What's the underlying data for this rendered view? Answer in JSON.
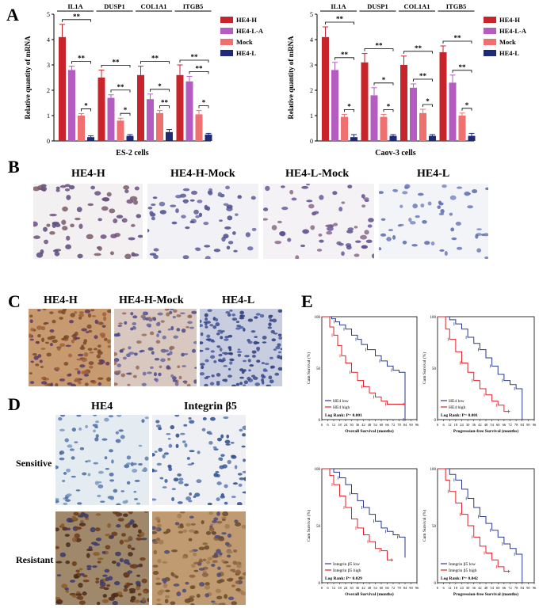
{
  "panels": {
    "a": "A",
    "b": "B",
    "c": "C",
    "d": "D",
    "e": "E"
  },
  "colors": {
    "HE4-H": "#c8242c",
    "HE4-L-A": "#b45cc0",
    "Mock": "#f07070",
    "HE4-L": "#1e2a78",
    "km_low": "#2a3a8c",
    "km_high": "#e0202a"
  },
  "chart_data": [
    {
      "type": "bar",
      "panel": "A-left",
      "xlabel": "ES-2 cells",
      "ylabel": "Relative quantity of mRNA",
      "ylim": [
        0,
        5
      ],
      "yticks": [
        "0",
        "1",
        "2",
        "3",
        "4",
        "5"
      ],
      "categories": [
        "IL1A",
        "DUSP1",
        "COL1A1",
        "ITGB5"
      ],
      "series": [
        {
          "name": "HE4-H",
          "values": [
            4.1,
            2.5,
            2.6,
            2.6
          ],
          "errors": [
            0.5,
            0.3,
            0.35,
            0.4
          ]
        },
        {
          "name": "HE4-L-A",
          "values": [
            2.8,
            1.7,
            1.65,
            2.35
          ],
          "errors": [
            0.15,
            0.12,
            0.2,
            0.2
          ]
        },
        {
          "name": "Mock",
          "values": [
            1.0,
            0.8,
            1.1,
            1.05
          ],
          "errors": [
            0.08,
            0.1,
            0.1,
            0.15
          ]
        },
        {
          "name": "HE4-L",
          "values": [
            0.15,
            0.2,
            0.35,
            0.25
          ],
          "errors": [
            0.05,
            0.05,
            0.1,
            0.05
          ]
        }
      ],
      "significance": [
        {
          "cat": 0,
          "from": 0,
          "to": 3,
          "label": "**"
        },
        {
          "cat": 0,
          "from": 1,
          "to": 3,
          "label": "**"
        },
        {
          "cat": 0,
          "from": 2,
          "to": 3,
          "label": "*"
        },
        {
          "cat": 1,
          "from": 0,
          "to": 3,
          "label": "**"
        },
        {
          "cat": 1,
          "from": 1,
          "to": 3,
          "label": "**"
        },
        {
          "cat": 1,
          "from": 2,
          "to": 3,
          "label": "*"
        },
        {
          "cat": 2,
          "from": 0,
          "to": 3,
          "label": "**"
        },
        {
          "cat": 2,
          "from": 1,
          "to": 3,
          "label": "*"
        },
        {
          "cat": 2,
          "from": 2,
          "to": 3,
          "label": "**"
        },
        {
          "cat": 3,
          "from": 0,
          "to": 3,
          "label": "**"
        },
        {
          "cat": 3,
          "from": 1,
          "to": 3,
          "label": "**"
        },
        {
          "cat": 3,
          "from": 2,
          "to": 3,
          "label": "*"
        }
      ]
    },
    {
      "type": "bar",
      "panel": "A-right",
      "xlabel": "Caov-3 cells",
      "ylabel": "Relative quantity of mRNA",
      "ylim": [
        0,
        5
      ],
      "yticks": [
        "0",
        "1",
        "2",
        "3",
        "4",
        "5"
      ],
      "categories": [
        "IL1A",
        "DUSP1",
        "COL1A1",
        "ITGB5"
      ],
      "series": [
        {
          "name": "HE4-H",
          "values": [
            4.1,
            3.1,
            3.0,
            3.5
          ],
          "errors": [
            0.4,
            0.35,
            0.35,
            0.25
          ]
        },
        {
          "name": "HE4-L-A",
          "values": [
            2.8,
            1.8,
            2.1,
            2.3
          ],
          "errors": [
            0.3,
            0.3,
            0.15,
            0.3
          ]
        },
        {
          "name": "Mock",
          "values": [
            0.95,
            0.95,
            1.1,
            1.0
          ],
          "errors": [
            0.1,
            0.1,
            0.15,
            0.1
          ]
        },
        {
          "name": "HE4-L",
          "values": [
            0.15,
            0.2,
            0.2,
            0.2
          ],
          "errors": [
            0.1,
            0.05,
            0.05,
            0.1
          ]
        }
      ],
      "significance": [
        {
          "cat": 0,
          "from": 0,
          "to": 3,
          "label": "**"
        },
        {
          "cat": 0,
          "from": 1,
          "to": 3,
          "label": "**"
        },
        {
          "cat": 0,
          "from": 2,
          "to": 3,
          "label": "*"
        },
        {
          "cat": 1,
          "from": 0,
          "to": 3,
          "label": "**"
        },
        {
          "cat": 1,
          "from": 1,
          "to": 3,
          "label": "*"
        },
        {
          "cat": 1,
          "from": 2,
          "to": 3,
          "label": "*"
        },
        {
          "cat": 2,
          "from": 0,
          "to": 3,
          "label": "**"
        },
        {
          "cat": 2,
          "from": 1,
          "to": 3,
          "label": "**"
        },
        {
          "cat": 2,
          "from": 2,
          "to": 3,
          "label": "*"
        },
        {
          "cat": 3,
          "from": 0,
          "to": 3,
          "label": "**"
        },
        {
          "cat": 3,
          "from": 1,
          "to": 3,
          "label": "**"
        },
        {
          "cat": 3,
          "from": 2,
          "to": 3,
          "label": "*"
        }
      ]
    },
    {
      "type": "line",
      "panel": "E-1",
      "xlabel": "Overall Survival (months)",
      "ylabel": "Cum Survival (%)",
      "xticks": [
        0,
        6,
        12,
        18,
        24,
        30,
        36,
        42,
        48,
        54,
        60,
        66,
        72,
        78,
        84,
        90,
        96
      ],
      "ylim": [
        0,
        100
      ],
      "yticks": [
        "0",
        "50",
        "100"
      ],
      "legend": [
        "HE4 low",
        "HE4 high"
      ],
      "stat": "Log Rank: P= 0.001",
      "series": [
        {
          "name": "HE4 low",
          "x": [
            0,
            10,
            14,
            18,
            24,
            30,
            36,
            40,
            46,
            54,
            60,
            66,
            72,
            78,
            84
          ],
          "y": [
            100,
            98,
            95,
            92,
            88,
            82,
            78,
            73,
            68,
            62,
            57,
            52,
            48,
            46,
            0
          ]
        },
        {
          "name": "HE4 high",
          "x": [
            0,
            8,
            12,
            16,
            20,
            24,
            30,
            36,
            42,
            48,
            54,
            60,
            66,
            72,
            84
          ],
          "y": [
            100,
            90,
            82,
            72,
            62,
            55,
            46,
            38,
            32,
            26,
            22,
            18,
            15,
            15,
            15
          ]
        }
      ]
    },
    {
      "type": "line",
      "panel": "E-2",
      "xlabel": "Progression-free Survival (months)",
      "ylabel": "Cum Survival (%)",
      "xticks": [
        0,
        6,
        12,
        18,
        24,
        30,
        36,
        42,
        48,
        54,
        60,
        66,
        72,
        78,
        84,
        90,
        96
      ],
      "ylim": [
        0,
        100
      ],
      "yticks": [
        "0",
        "50",
        "100"
      ],
      "legend": [
        "HE4 low",
        "HE4 high"
      ],
      "stat": "Log Rank: P= 0.001",
      "series": [
        {
          "name": "HE4 low",
          "x": [
            0,
            12,
            18,
            24,
            30,
            36,
            42,
            48,
            54,
            60,
            66,
            72,
            78,
            84
          ],
          "y": [
            100,
            97,
            93,
            88,
            80,
            74,
            68,
            60,
            52,
            44,
            38,
            34,
            30,
            0
          ]
        },
        {
          "name": "HE4 high",
          "x": [
            0,
            8,
            12,
            18,
            24,
            30,
            36,
            42,
            48,
            54,
            60,
            66,
            72
          ],
          "y": [
            100,
            88,
            78,
            66,
            55,
            46,
            38,
            30,
            24,
            18,
            14,
            8,
            8
          ]
        }
      ]
    },
    {
      "type": "line",
      "panel": "E-3",
      "xlabel": "Overall Survival (months)",
      "ylabel": "Cum Survival (%)",
      "xticks": [
        0,
        6,
        12,
        18,
        24,
        30,
        36,
        42,
        48,
        54,
        60,
        66,
        72,
        78,
        84,
        90,
        96
      ],
      "ylim": [
        0,
        100
      ],
      "yticks": [
        "0",
        "50",
        "100"
      ],
      "legend": [
        "Integrin β5 low",
        "Integrin β5 high"
      ],
      "stat": "Log Rank: P= 0.029",
      "series": [
        {
          "name": "Integrin β5 low",
          "x": [
            0,
            12,
            18,
            24,
            30,
            36,
            42,
            48,
            54,
            60,
            66,
            72,
            78,
            84
          ],
          "y": [
            100,
            97,
            92,
            86,
            78,
            72,
            66,
            60,
            54,
            48,
            45,
            42,
            40,
            22
          ]
        },
        {
          "name": "Integrin β5 high",
          "x": [
            0,
            8,
            12,
            18,
            24,
            30,
            36,
            42,
            48,
            54,
            60,
            66,
            72
          ],
          "y": [
            100,
            94,
            86,
            76,
            66,
            56,
            48,
            42,
            36,
            30,
            28,
            20,
            20
          ]
        }
      ]
    },
    {
      "type": "line",
      "panel": "E-4",
      "xlabel": "Progression-free Survival (months)",
      "ylabel": "Cum Survival (%)",
      "xticks": [
        0,
        6,
        12,
        18,
        24,
        30,
        36,
        42,
        48,
        54,
        60,
        66,
        72,
        78,
        84,
        90,
        96
      ],
      "ylim": [
        0,
        100
      ],
      "yticks": [
        "0",
        "50",
        "100"
      ],
      "legend": [
        "Integrin β5 low",
        "Integrin β5 high"
      ],
      "stat": "Log Rank: P= 0.042",
      "series": [
        {
          "name": "Integrin β5 low",
          "x": [
            0,
            12,
            18,
            24,
            30,
            36,
            42,
            48,
            54,
            60,
            66,
            72,
            78,
            84
          ],
          "y": [
            100,
            95,
            90,
            82,
            74,
            66,
            58,
            52,
            46,
            40,
            34,
            30,
            25,
            0
          ]
        },
        {
          "name": "Integrin β5 high",
          "x": [
            0,
            8,
            12,
            18,
            24,
            30,
            36,
            42,
            48,
            54,
            60,
            66,
            72
          ],
          "y": [
            100,
            90,
            80,
            70,
            60,
            50,
            40,
            32,
            26,
            20,
            14,
            10,
            10
          ]
        }
      ]
    }
  ],
  "panel_b": {
    "labels": [
      "HE4-H",
      "HE4-H-Mock",
      "HE4-L-Mock",
      "HE4-L"
    ]
  },
  "panel_c": {
    "labels": [
      "HE4-H",
      "HE4-H-Mock",
      "HE4-L"
    ]
  },
  "panel_d": {
    "columns": [
      "HE4",
      "Integrin β5"
    ],
    "rows": [
      "Sensitive",
      "Resistant"
    ]
  }
}
